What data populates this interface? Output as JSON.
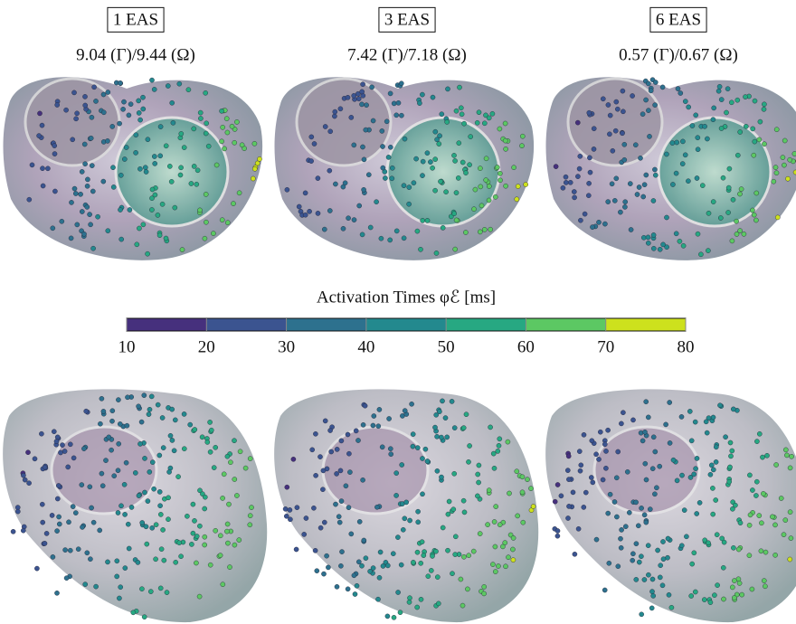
{
  "panels": [
    {
      "title": "1 EAS",
      "error": "9.04 (Γ)/9.44 (Ω)"
    },
    {
      "title": "3 EAS",
      "error": "7.42 (Γ)/7.18 (Ω)"
    },
    {
      "title": "6 EAS",
      "error": "0.57 (Γ)/0.67 (Ω)"
    }
  ],
  "colorbar": {
    "label": "Activation Times φℰ [ms]",
    "lim": [
      10,
      80
    ],
    "ticks": [
      10,
      20,
      30,
      40,
      50,
      60,
      70,
      80
    ],
    "colors": [
      "#46307d",
      "#3b5490",
      "#2d718e",
      "#23898e",
      "#27a882",
      "#5cc863",
      "#cde11d"
    ]
  }
}
